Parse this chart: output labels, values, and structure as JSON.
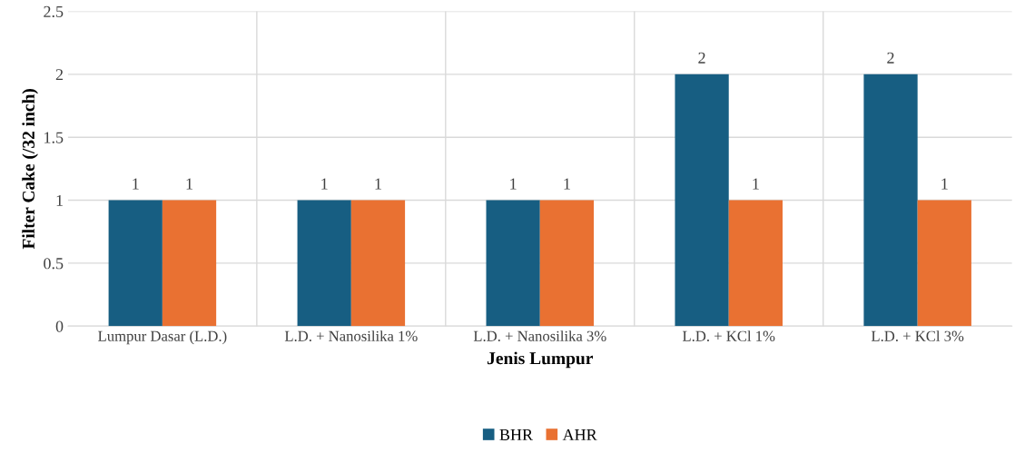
{
  "chart_data": {
    "type": "bar",
    "xlabel": "Jenis Lumpur",
    "ylabel": "Filter Cake (/32 inch)",
    "categories": [
      "Lumpur Dasar (L.D.)",
      "L.D. + Nanosilika 1%",
      "L.D. + Nanosilika 3%",
      "L.D. + KCl 1%",
      "L.D. + KCl 3%"
    ],
    "series": [
      {
        "name": "BHR",
        "color": "#175e82",
        "values": [
          1,
          1,
          1,
          2,
          2
        ]
      },
      {
        "name": "AHR",
        "color": "#e97132",
        "values": [
          1,
          1,
          1,
          1,
          1
        ]
      }
    ],
    "ylim": [
      0,
      2.5
    ],
    "yticks": [
      0,
      0.5,
      1,
      1.5,
      2,
      2.5
    ],
    "grid": true,
    "legend": "bottom",
    "data_labels": true
  }
}
